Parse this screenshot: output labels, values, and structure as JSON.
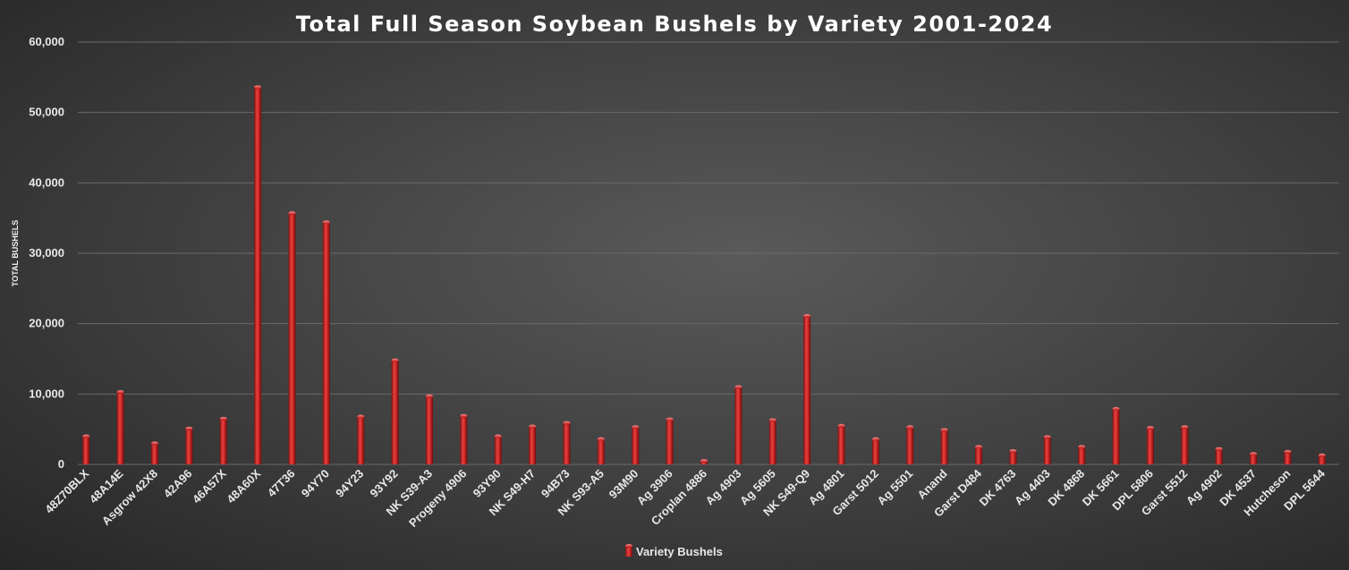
{
  "chart_data": {
    "type": "bar",
    "title": "Total Full Season Soybean Bushels by Variety 2001-2024",
    "ylabel": "TOTAL BUSHELS",
    "xlabel": "",
    "ylim": [
      0,
      60000
    ],
    "yticks": [
      "0",
      "10,000",
      "20,000",
      "30,000",
      "40,000",
      "50,000",
      "60,000"
    ],
    "ytick_values": [
      0,
      10000,
      20000,
      30000,
      40000,
      50000,
      60000
    ],
    "grid": true,
    "legend_position": "bottom",
    "categories": [
      "48Z70BLX",
      "48A14E",
      "Asgrow 42X8",
      "42A96",
      "46A57X",
      "48A60X",
      "47T36",
      "94Y70",
      "94Y23",
      "93Y92",
      "NK S39-A3",
      "Progeny 4906",
      "93Y90",
      "NK S49-H7",
      "94B73",
      "NK S93-A5",
      "93M90",
      "Ag 3906",
      "Croplan 4886",
      "Ag 4903",
      "Ag 5605",
      "NK S49-Q9",
      "Ag 4801",
      "Garst 5012",
      "Ag 5501",
      "Anand",
      "Garst D484",
      "DK 4763",
      "Ag 4403",
      "DK 4868",
      "DK 5661",
      "DPL 5806",
      "Garst 5512",
      "Ag 4902",
      "DK 4537",
      "Hutcheson",
      "DPL 5644"
    ],
    "series": [
      {
        "name": "Variety Bushels",
        "color": "#c0201f",
        "values": [
          4000,
          10300,
          3000,
          5100,
          6500,
          53600,
          35700,
          34400,
          6800,
          14800,
          9700,
          6900,
          4000,
          5400,
          5900,
          3600,
          5300,
          6400,
          500,
          11000,
          6300,
          21100,
          5500,
          3600,
          5300,
          4900,
          2500,
          1900,
          3900,
          2500,
          7900,
          5200,
          5300,
          2200,
          1500,
          1800,
          1300
        ]
      }
    ]
  }
}
